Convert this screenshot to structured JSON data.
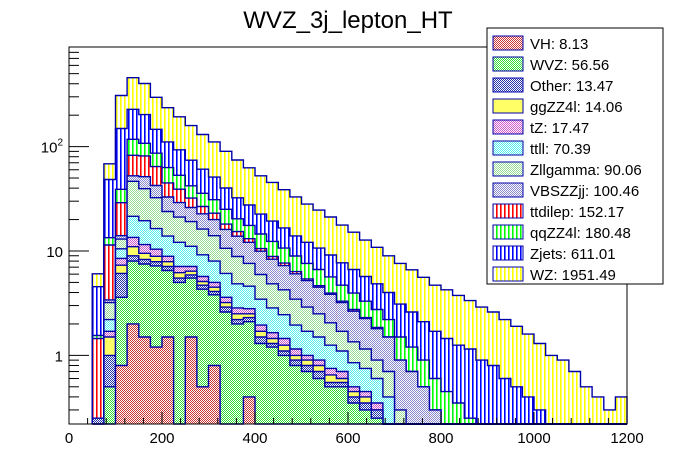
{
  "chart_data": {
    "type": "bar",
    "stacked": true,
    "title": "WVZ_3j_lepton_HT",
    "xlabel": "",
    "ylabel": "",
    "xlim": [
      0,
      1200
    ],
    "ylim": [
      0.22,
      900
    ],
    "yscale": "log",
    "bin_width": 25,
    "x_ticks": [
      "0",
      "200",
      "400",
      "600",
      "800",
      "1000",
      "1200"
    ],
    "x_tick_values": [
      0,
      200,
      400,
      600,
      800,
      1000,
      1200
    ],
    "y_ticks": [
      "1",
      "10",
      "10²"
    ],
    "y_tick_values": [
      1,
      10,
      100
    ],
    "legend_position": "top-right",
    "bin_starts": [
      50,
      75,
      100,
      125,
      150,
      175,
      200,
      225,
      250,
      275,
      300,
      325,
      350,
      375,
      400,
      425,
      450,
      475,
      500,
      525,
      550,
      575,
      600,
      625,
      650,
      675,
      700,
      725,
      750,
      775,
      800,
      825,
      850,
      875,
      900,
      925,
      950,
      975,
      1000,
      1025,
      1050,
      1075,
      1100,
      1125,
      1150,
      1175
    ],
    "series": [
      {
        "name": "VH",
        "label": "VH: 8.13",
        "color": "#ff0000",
        "fill": "#cc3333",
        "pattern": "crosshatch",
        "values": [
          0,
          0,
          0.8,
          2,
          1.5,
          1.2,
          1.5,
          0,
          1.5,
          0.5,
          0.8,
          0,
          0,
          0.4,
          0,
          0,
          0,
          0,
          0,
          0,
          0,
          0,
          0,
          0,
          0,
          0,
          0,
          0,
          0,
          0,
          0,
          0,
          0,
          0,
          0,
          0,
          0,
          0,
          0,
          0,
          0,
          0,
          0,
          0,
          0,
          0
        ]
      },
      {
        "name": "WVZ",
        "label": "WVZ: 56.56",
        "color": "#00cc00",
        "fill": "#33dd33",
        "pattern": "crosshatch",
        "values": [
          0,
          0.5,
          2.8,
          6,
          6,
          6,
          5,
          5,
          4,
          3.8,
          3,
          2.6,
          2,
          1.7,
          1.3,
          1.2,
          1,
          0.8,
          0.7,
          0.6,
          0.5,
          0.5,
          0.35,
          0.3,
          0.25,
          0.2,
          0,
          0,
          0,
          0,
          0,
          0,
          0,
          0,
          0,
          0,
          0,
          0,
          0,
          0,
          0,
          0,
          0,
          0,
          0,
          0
        ]
      },
      {
        "name": "Other",
        "label": "Other: 13.47",
        "color": "#0000cc",
        "fill": "#2233aa",
        "pattern": "crosshatch",
        "values": [
          0.25,
          0.5,
          2.5,
          1,
          0.8,
          0.7,
          0.6,
          0.5,
          0.4,
          0.4,
          0.3,
          0.3,
          0.2,
          0.2,
          0.2,
          0.1,
          0.1,
          0.1,
          0.1,
          0.1,
          0.05,
          0.05,
          0.05,
          0.05,
          0.05,
          0,
          0,
          0,
          0,
          0,
          0,
          0,
          0,
          0,
          0,
          0,
          0,
          0,
          0,
          0,
          0,
          0,
          0,
          0,
          0,
          0
        ]
      },
      {
        "name": "ggZZ4l",
        "label": "ggZZ4l: 14.06",
        "color": "#ffff00",
        "fill": "#ffff66",
        "pattern": "solid",
        "values": [
          0,
          0.5,
          1.2,
          2,
          1.2,
          1,
          0.8,
          0.7,
          0.5,
          0.4,
          0.4,
          0.3,
          0.3,
          0.2,
          0.2,
          0.15,
          0.15,
          0.1,
          0.1,
          0.1,
          0.1,
          0.05,
          0.05,
          0.05,
          0,
          0,
          0,
          0,
          0,
          0,
          0,
          0,
          0,
          0,
          0,
          0,
          0,
          0,
          0,
          0,
          0,
          0,
          0,
          0,
          0,
          0
        ]
      },
      {
        "name": "tZ",
        "label": "tZ: 17.47",
        "color": "#cc00cc",
        "fill": "#cc55cc",
        "pattern": "crosshatch",
        "values": [
          0,
          0.2,
          1.2,
          2.5,
          2,
          1.5,
          1,
          0.9,
          0.7,
          0.6,
          0.5,
          0.4,
          0.35,
          0.3,
          0.25,
          0.2,
          0.2,
          0.15,
          0.1,
          0.1,
          0.1,
          0.1,
          0.05,
          0.05,
          0.05,
          0,
          0,
          0,
          0,
          0,
          0,
          0,
          0,
          0,
          0,
          0,
          0,
          0,
          0,
          0,
          0,
          0,
          0,
          0,
          0,
          0
        ]
      },
      {
        "name": "ttll",
        "label": "ttll: 70.39",
        "color": "#00cccc",
        "fill": "#55eeee",
        "pattern": "crosshatch",
        "values": [
          0,
          0.5,
          2,
          8,
          8,
          6,
          5,
          5,
          4,
          3.5,
          3,
          2.5,
          2,
          1.8,
          1.5,
          1.2,
          1,
          0.8,
          0.7,
          0.6,
          0.5,
          0.4,
          0.35,
          0.3,
          0.25,
          0.2,
          0.1,
          0.1,
          0,
          0,
          0,
          0,
          0,
          0,
          0,
          0,
          0,
          0,
          0,
          0,
          0,
          0,
          0,
          0,
          0,
          0
        ]
      },
      {
        "name": "Zllgamma",
        "label": "Zllgamma: 90.06",
        "color": "#66cc66",
        "fill": "#99dd99",
        "pattern": "crosshatch",
        "values": [
          0,
          1,
          2.5,
          25,
          20,
          16,
          10,
          9,
          8,
          7,
          6,
          4.5,
          4,
          3,
          2.5,
          2,
          1.8,
          1.5,
          1.2,
          1,
          0.8,
          0.6,
          0.5,
          0.4,
          0.3,
          0.3,
          0.2,
          0.1,
          0.1,
          0,
          0,
          0,
          0,
          0,
          0,
          0,
          0,
          0,
          0,
          0,
          0,
          0,
          0,
          0,
          0,
          0
        ]
      },
      {
        "name": "VBSZZjj",
        "label": "VBSZZjj: 100.46",
        "color": "#3333aa",
        "fill": "#8888cc",
        "pattern": "crosshatch",
        "values": [
          0,
          0.2,
          1,
          6,
          12,
          10,
          9,
          8,
          7,
          6.5,
          6,
          5.5,
          5,
          4.5,
          4,
          3.5,
          3,
          2.6,
          2.3,
          2,
          1.8,
          1.5,
          1.3,
          1.1,
          0.9,
          0.8,
          0.6,
          0.5,
          0.4,
          0.3,
          0.2,
          0.15,
          0.1,
          0,
          0,
          0,
          0,
          0,
          0,
          0,
          0,
          0,
          0,
          0,
          0,
          0
        ]
      },
      {
        "name": "ttdilep",
        "label": "ttdilep: 152.17",
        "color": "#ff0000",
        "fill": "#ffffff",
        "pattern": "vlines",
        "values": [
          1.2,
          8,
          15,
          30,
          30,
          22,
          12,
          10,
          6,
          4,
          3,
          2,
          1.5,
          1,
          0.6,
          0.5,
          0.4,
          0.3,
          0.2,
          0.15,
          0.1,
          0.1,
          0.1,
          0.05,
          0.05,
          0,
          0,
          0,
          0,
          0,
          0,
          0,
          0,
          0,
          0,
          0,
          0,
          0,
          0,
          0,
          0,
          0,
          0,
          0,
          0,
          0
        ]
      },
      {
        "name": "qqZZ4l",
        "label": "qqZZ4l: 180.48",
        "color": "#00ff00",
        "fill": "#ffffff",
        "pattern": "vlines",
        "values": [
          0.1,
          2,
          10,
          35,
          26,
          22,
          18,
          14,
          10,
          9,
          8,
          7,
          5,
          4.5,
          4,
          3.5,
          3,
          2.6,
          2.2,
          2,
          1.7,
          1.4,
          1.2,
          1,
          0.9,
          0.7,
          0.6,
          0.5,
          0.4,
          0.3,
          0.25,
          0.2,
          0.15,
          0.1,
          0.1,
          0,
          0,
          0,
          0,
          0,
          0,
          0,
          0,
          0,
          0,
          0
        ]
      },
      {
        "name": "Zjets",
        "label": "Zjets: 611.01",
        "color": "#0000ff",
        "fill": "#ffffff",
        "pattern": "vlines",
        "values": [
          3,
          35,
          110,
          110,
          95,
          60,
          48,
          40,
          32,
          25,
          20,
          15,
          12,
          10,
          8,
          7,
          6,
          5,
          4.5,
          4,
          3.5,
          3,
          2.7,
          2.4,
          2.1,
          1.8,
          1.6,
          1.4,
          1.2,
          1.1,
          1,
          0.9,
          0.9,
          0.8,
          0.7,
          0.6,
          0.5,
          0.4,
          0.3,
          0.2,
          0.2,
          0.1,
          0,
          0,
          0,
          0
        ]
      },
      {
        "name": "WZ",
        "label": "WZ: 1951.49",
        "color": "#ffff00",
        "fill": "#ffffff",
        "pattern": "vlines",
        "values": [
          1.5,
          20,
          160,
          230,
          200,
          150,
          125,
          100,
          85,
          70,
          60,
          50,
          42,
          35,
          30,
          26,
          22,
          19,
          16,
          14,
          12,
          10,
          8.5,
          7,
          6,
          5,
          4.5,
          4,
          3.5,
          3,
          2.8,
          2.5,
          2.2,
          2,
          1.8,
          1.6,
          1.4,
          1.2,
          1,
          0.8,
          0.7,
          0.6,
          0.5,
          0.4,
          0.3,
          0.4
        ]
      }
    ]
  }
}
